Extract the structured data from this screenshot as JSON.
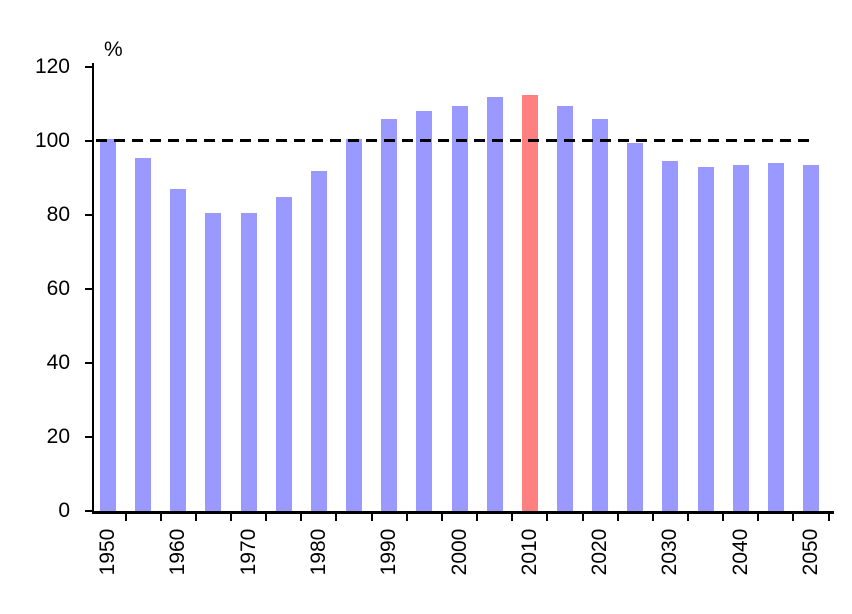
{
  "chart_data": {
    "type": "bar",
    "title": "",
    "ylabel": "%",
    "xlabel": "",
    "categories": [
      "1950",
      "1955",
      "1960",
      "1965",
      "1970",
      "1975",
      "1980",
      "1985",
      "1990",
      "1995",
      "2000",
      "2005",
      "2010",
      "2015",
      "2020",
      "2025",
      "2030",
      "2035",
      "2040",
      "2045",
      "2050"
    ],
    "values": [
      100.5,
      95.5,
      87,
      80.5,
      80.5,
      85,
      92,
      100.5,
      106,
      108,
      109.5,
      112,
      112.5,
      109.5,
      106,
      99.5,
      94.5,
      93,
      93.5,
      94,
      93.5
    ],
    "bar_color": "#9999FF",
    "highlight_color": "#FF8080",
    "highlight_category": "2010",
    "ylim": [
      0,
      120
    ],
    "yticks": [
      0,
      20,
      40,
      60,
      80,
      100,
      120
    ],
    "xtick_labels": [
      "1950",
      "1960",
      "1970",
      "1980",
      "1990",
      "2000",
      "2010",
      "2020",
      "2030",
      "2040",
      "2050"
    ],
    "reference_line": {
      "value": 100,
      "style": "dashed",
      "color": "#000000"
    },
    "axis_color": "#000000",
    "grid": false,
    "legend_position": "none",
    "x_labels_rotation_deg": -90
  }
}
